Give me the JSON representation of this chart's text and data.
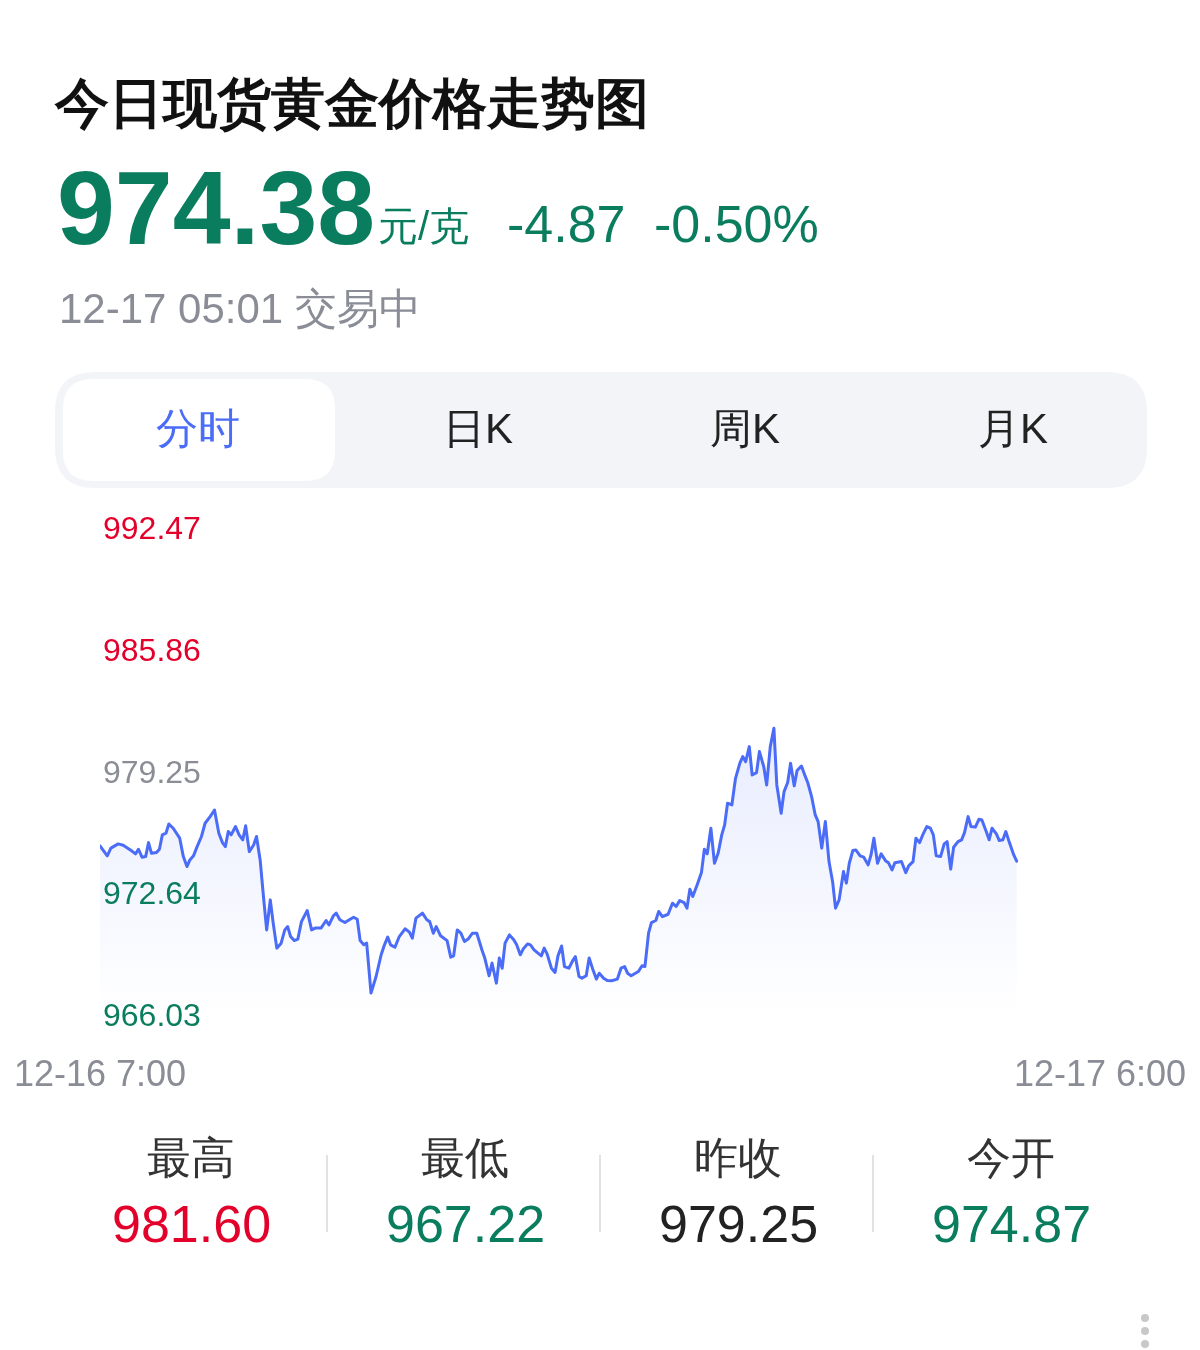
{
  "chart_data": {
    "type": "area",
    "title": "今日现货黄金价格走势图",
    "annotations": [
      "974.38",
      "元/克",
      "-4.87",
      "-0.50%",
      "12-17 05:01 交易中",
      "分时",
      "日K",
      "周K",
      "月K",
      "最高",
      "981.60",
      "最低",
      "967.22",
      "昨收",
      "979.25",
      "今开",
      "974.87"
    ],
    "x": [
      "--12-16T07:00",
      "--12-16T07:10",
      "--12-16T07:15",
      "--12-16T07:25",
      "--12-16T07:32",
      "--12-16T07:43",
      "--12-16T07:49",
      "--12-16T07:53",
      "--12-16T07:58",
      "--12-16T08:03",
      "--12-16T08:07",
      "--12-16T08:11",
      "--12-16T08:18",
      "--12-16T08:22",
      "--12-16T08:26",
      "--12-16T08:31",
      "--12-16T08:35",
      "--12-16T08:41",
      "--12-16T08:50",
      "--12-16T08:55",
      "--12-16T09:00",
      "--12-16T09:04",
      "--12-16T09:09",
      "--12-16T09:14",
      "--12-16T09:20",
      "--12-16T09:25",
      "--12-16T09:32",
      "--12-16T09:38",
      "--12-16T09:44",
      "--12-16T09:49",
      "--12-16T09:53",
      "--12-16T09:57",
      "--12-16T10:01",
      "--12-16T10:07",
      "--12-16T10:12",
      "--12-16T10:17",
      "--12-16T10:21",
      "--12-16T10:26",
      "--12-16T10:32",
      "--12-16T10:36",
      "--12-16T10:41",
      "--12-16T10:46",
      "--12-16T10:50",
      "--12-16T10:55",
      "--12-16T10:59",
      "--12-16T11:04",
      "--12-16T11:10",
      "--12-16T11:15",
      "--12-16T11:19",
      "--12-16T11:23",
      "--12-16T11:28",
      "--12-16T11:33",
      "--12-16T11:38",
      "--12-16T11:46",
      "--12-16T11:52",
      "--12-16T11:57",
      "--12-16T12:05",
      "--12-16T12:12",
      "--12-16T12:16",
      "--12-16T12:22",
      "--12-16T12:26",
      "--12-16T12:31",
      "--12-16T12:38",
      "--12-16T12:44",
      "--12-16T12:50",
      "--12-16T12:55",
      "--12-16T12:59",
      "--12-16T13:04",
      "--12-16T13:08",
      "--12-16T13:14",
      "--12-16T13:21",
      "--12-16T13:28",
      "--12-16T13:32",
      "--12-16T13:37",
      "--12-16T13:41",
      "--12-16T13:47",
      "--12-16T13:53",
      "--12-16T14:01",
      "--12-16T14:07",
      "--12-16T14:11",
      "--12-16T14:16",
      "--12-16T14:25",
      "--12-16T14:31",
      "--12-16T14:35",
      "--12-16T14:40",
      "--12-16T14:44",
      "--12-16T14:50",
      "--12-16T14:59",
      "--12-16T15:04",
      "--12-16T15:08",
      "--12-16T15:13",
      "--12-16T15:18",
      "--12-16T15:23",
      "--12-16T15:28",
      "--12-16T15:34",
      "--12-16T15:40",
      "--12-16T15:47",
      "--12-16T15:51",
      "--12-16T15:57",
      "--12-16T16:01",
      "--12-16T16:07",
      "--12-16T16:11",
      "--12-16T16:15",
      "--12-16T16:19",
      "--12-16T16:25",
      "--12-16T16:31",
      "--12-16T16:35",
      "--12-16T16:40",
      "--12-16T16:44",
      "--12-16T16:50",
      "--12-16T16:54",
      "--12-16T16:59",
      "--12-16T17:09",
      "--12-16T17:13",
      "--12-16T17:17",
      "--12-16T17:23",
      "--12-16T17:28",
      "--12-16T17:32",
      "--12-16T17:37",
      "--12-16T17:41",
      "--12-16T17:47",
      "--12-16T17:53",
      "--12-16T17:56",
      "--12-16T18:01",
      "--12-16T18:05",
      "--12-16T18:11",
      "--12-16T18:15",
      "--12-16T18:20",
      "--12-16T18:25",
      "--12-16T18:29",
      "--12-16T18:35",
      "--12-16T18:40",
      "--12-16T18:46",
      "--12-16T18:54",
      "--12-16T18:59",
      "--12-16T19:04",
      "--12-16T19:08",
      "--12-16T19:13",
      "--12-16T19:23",
      "--12-16T19:28",
      "--12-16T19:32",
      "--12-16T19:37",
      "--12-16T19:41",
      "--12-16T19:47",
      "--12-16T19:51",
      "--12-16T19:56",
      "--12-16T20:04",
      "--12-16T20:10",
      "--12-16T20:15",
      "--12-16T20:20",
      "--12-16T20:26",
      "--12-16T20:30",
      "--12-16T20:34",
      "--12-16T20:38",
      "--12-16T20:44",
      "--12-16T20:50",
      "--12-16T20:54",
      "--12-16T20:58",
      "--12-16T21:03",
      "--12-16T21:08",
      "--12-16T21:13",
      "--12-16T21:18",
      "--12-16T21:22",
      "--12-16T21:26",
      "--12-16T21:32",
      "--12-16T21:37",
      "--12-16T21:43",
      "--12-16T21:47",
      "--12-16T21:51",
      "--12-16T21:56",
      "--12-16T22:00",
      "--12-16T22:06",
      "--12-16T22:10",
      "--12-16T22:16",
      "--12-16T22:20",
      "--12-16T22:25",
      "--12-16T22:30",
      "--12-16T22:34",
      "--12-16T22:40",
      "--12-16T22:44",
      "--12-16T22:49",
      "--12-16T22:53",
      "--12-16T22:58",
      "--12-16T23:02",
      "--12-16T23:08",
      "--12-16T23:13",
      "--12-16T23:17",
      "--12-16T23:22",
      "--12-16T23:27",
      "--12-16T23:31",
      "--12-16T23:36",
      "--12-16T23:41",
      "--12-16T23:46",
      "--12-16T23:51",
      "--12-16T23:55",
      "--12-17T00:00",
      "--12-17T00:06",
      "--12-17T00:10",
      "--12-17T00:14",
      "--12-17T00:19",
      "--12-17T00:23",
      "--12-17T00:29",
      "--12-17T00:34",
      "--12-17T00:40",
      "--12-17T00:44",
      "--12-17T00:48",
      "--12-17T00:53",
      "--12-17T00:58",
      "--12-17T01:04",
      "--12-17T01:08",
      "--12-17T01:13",
      "--12-17T01:17",
      "--12-17T01:26",
      "--12-17T01:32",
      "--12-17T01:36",
      "--12-17T01:42",
      "--12-17T01:46",
      "--12-17T01:51",
      "--12-17T01:56",
      "--12-17T02:01",
      "--12-17T02:06",
      "--12-17T02:10",
      "--12-17T02:14",
      "--12-17T02:20",
      "--12-17T02:25",
      "--12-17T02:29",
      "--12-17T02:34",
      "--12-17T02:38",
      "--12-17T02:44",
      "--12-17T02:49",
      "--12-17T02:53",
      "--12-17T02:58",
      "--12-17T03:02",
      "--12-17T03:08",
      "--12-17T03:13",
      "--12-17T03:17",
      "--12-17T03:23",
      "--12-17T03:27",
      "--12-17T03:31",
      "--12-17T03:37",
      "--12-17T03:41",
      "--12-17T03:46",
      "--12-17T03:50",
      "--12-17T03:55",
      "--12-17T04:01",
      "--12-17T04:05"
    ],
    "series": [
      {
        "color": "#4a6cf7",
        "values": [
          975.21,
          974.67,
          975.09,
          975.32,
          975.25,
          974.96,
          974.78,
          975.03,
          974.6,
          974.63,
          975.39,
          974.81,
          974.85,
          975.03,
          975.81,
          975.9,
          976.4,
          976.17,
          975.63,
          974.63,
          974.09,
          974.45,
          974.67,
          975.17,
          975.72,
          976.44,
          976.8,
          977.16,
          975.9,
          975.39,
          975.17,
          975.99,
          975.81,
          976.26,
          975.81,
          975.54,
          976.3,
          974.9,
          975.26,
          975.72,
          974.45,
          972.28,
          970.65,
          972.28,
          971.02,
          969.66,
          969.93,
          970.65,
          970.83,
          970.29,
          970.07,
          970.15,
          971.1,
          971.7,
          970.65,
          970.75,
          970.75,
          971.16,
          970.92,
          971.41,
          971.56,
          971.2,
          971.05,
          971.2,
          971.34,
          971.23,
          970.07,
          969.84,
          969.93,
          967.22,
          968.12,
          969.3,
          969.78,
          970.26,
          969.84,
          969.71,
          970.29,
          970.71,
          970.53,
          970.2,
          971.29,
          971.56,
          971.2,
          971.1,
          970.47,
          970.83,
          970.33,
          970.07,
          969.17,
          969.24,
          970.65,
          970.47,
          970.02,
          970.15,
          970.47,
          970.47,
          969.57,
          969.12,
          968.16,
          968.85,
          967.76,
          969.12,
          968.57,
          969.93,
          970.38,
          970.11,
          969.84,
          969.3,
          969.61,
          969.89,
          969.84,
          969.57,
          969.24,
          969.66,
          969.35,
          968.57,
          968.34,
          969.24,
          969.78,
          968.66,
          968.57,
          969.03,
          969.2,
          968.12,
          968.03,
          968.16,
          969.12,
          968.52,
          967.98,
          968.3,
          968.03,
          967.9,
          967.89,
          967.98,
          968.57,
          968.66,
          968.3,
          968.16,
          968.39,
          968.7,
          968.66,
          970.47,
          971.05,
          971.16,
          971.65,
          971.37,
          971.5,
          972.1,
          971.92,
          972.24,
          972.13,
          971.83,
          972.86,
          972.46,
          973.09,
          973.76,
          975.03,
          974.78,
          976.17,
          974.27,
          974.81,
          975.81,
          976.35,
          977.53,
          977.44,
          978.88,
          979.7,
          980.06,
          979.78,
          980.6,
          979.06,
          979.19,
          980.33,
          979.51,
          978.52,
          980.6,
          981.6,
          978.52,
          976.98,
          978.16,
          978.65,
          979.7,
          978.47,
          979.3,
          979.55,
          979.01,
          978.61,
          977.89,
          976.89,
          976.53,
          975.09,
          976.53,
          974.36,
          973.27,
          971.83,
          972.28,
          973.82,
          973.19,
          974.27,
          974.96,
          974.99,
          974.67,
          974.6,
          974.18,
          974.72,
          975.63,
          974.27,
          974.78,
          974.41,
          974.3,
          973.91,
          974.3,
          974.36,
          973.76,
          974.13,
          974.36,
          975.63,
          975.39,
          975.86,
          976.26,
          976.17,
          975.81,
          974.67,
          974.63,
          975.32,
          975.44,
          973.95,
          975.14,
          975.44,
          975.54,
          975.93,
          976.8,
          976.26,
          976.23,
          976.66,
          976.62,
          975.99,
          975.54,
          976.17,
          975.86,
          975.5,
          975.54,
          975.99,
          975.39,
          974.72,
          974.38
        ]
      }
    ],
    "xlim": [
      "--12-16T07:00",
      "--12-17T06:00"
    ],
    "xticks": [
      {
        "value": "--12-16T07:00",
        "label": "12-16 7:00"
      },
      {
        "value": "--12-17T06:00",
        "label": "12-17 6:00"
      }
    ],
    "ylim": [
      966.03,
      992.47
    ],
    "yticks": [
      966.03,
      972.64,
      979.25,
      985.86,
      992.47
    ]
  }
}
